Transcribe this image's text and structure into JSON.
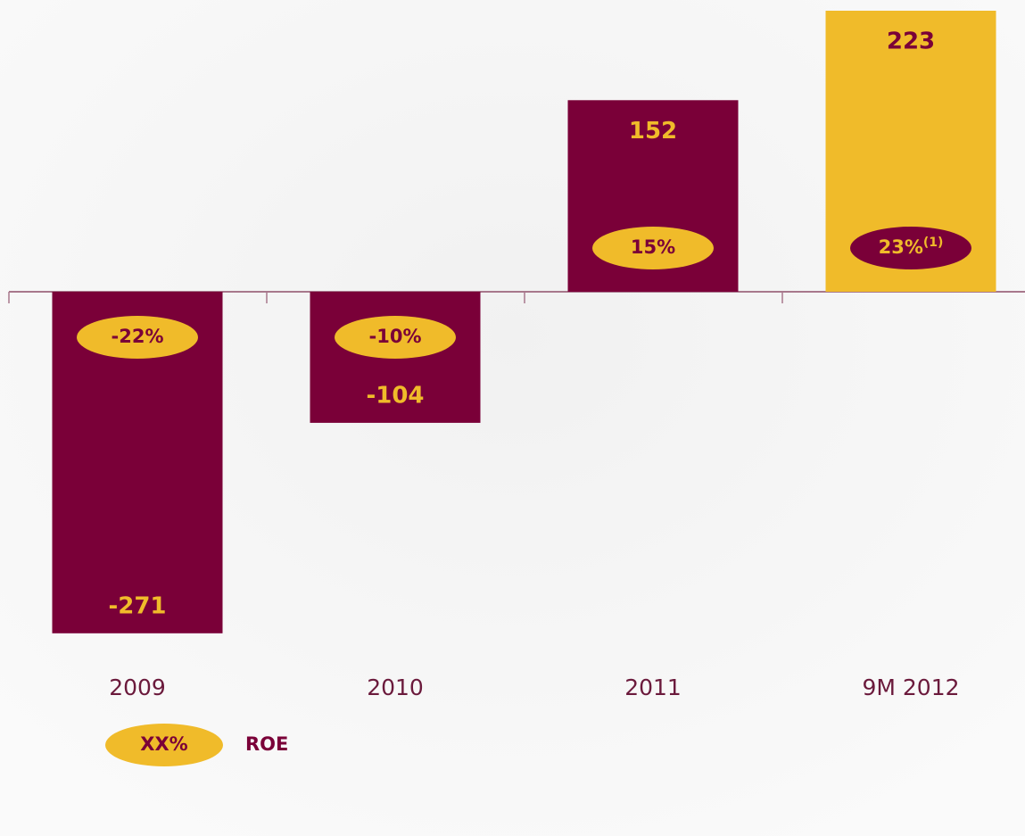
{
  "chart_data": {
    "type": "bar",
    "categories": [
      "2009",
      "2010",
      "2011",
      "9M 2012"
    ],
    "values": [
      -271,
      -104,
      152,
      223
    ],
    "colors": [
      "#7a0038",
      "#7a0038",
      "#7a0038",
      "#f0bb2a"
    ],
    "roe": {
      "name": "ROE",
      "values": [
        -22,
        -10,
        15,
        23
      ],
      "value_labels": [
        "-22%",
        "-10%",
        "15%",
        "23%"
      ],
      "note": "(1)",
      "note_index": 3
    },
    "legend_symbol_label": "XX%"
  }
}
